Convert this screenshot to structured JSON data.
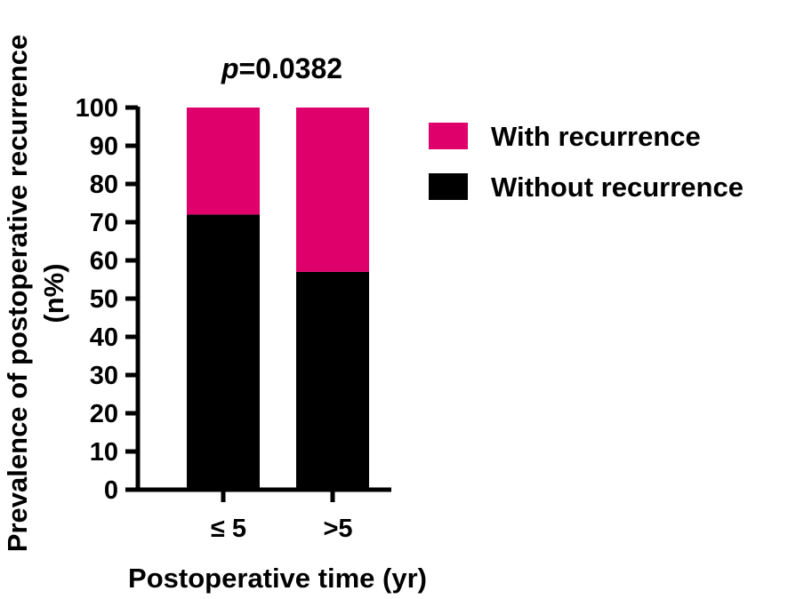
{
  "chart_data": {
    "type": "bar",
    "stacked": true,
    "annotation": {
      "prefix": "p",
      "value": "=0.0382"
    },
    "xlabel": "Postoperative time (yr)",
    "ylabel_lines": [
      "Prevalence of postoperative recurrence",
      "(n%)"
    ],
    "categories": [
      "≤ 5",
      ">5"
    ],
    "ylim": [
      0,
      100
    ],
    "yticks": [
      0,
      10,
      20,
      30,
      40,
      50,
      60,
      70,
      80,
      90,
      100
    ],
    "series": [
      {
        "name": "Without recurrence",
        "color": "#000000",
        "values": [
          72,
          57
        ]
      },
      {
        "name": "With recurrence",
        "color": "#E0006B",
        "values": [
          28,
          43
        ]
      }
    ],
    "legend_order": [
      "With recurrence",
      "Without recurrence"
    ],
    "legend_position": "right",
    "grid": false
  }
}
